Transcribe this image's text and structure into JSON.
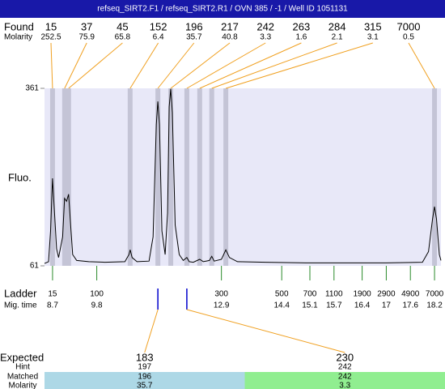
{
  "header": {
    "title": "refseq_SIRT2.F1 / refseq_SIRT2.R1 / OVN 385 / -1 / Well ID 1051131"
  },
  "chart_data": {
    "type": "line",
    "ylabel": "Fluo.",
    "ylim": [
      61,
      361
    ],
    "yticks": [
      61,
      361
    ],
    "xlim": [
      8.5,
      18.36
    ],
    "color": "#000000",
    "x": [
      8.5,
      8.6,
      8.65,
      8.7,
      8.75,
      8.8,
      8.85,
      8.95,
      9.0,
      9.05,
      9.1,
      9.15,
      9.2,
      9.3,
      9.6,
      10.0,
      10.5,
      10.6,
      10.63,
      10.68,
      10.8,
      11.1,
      11.2,
      11.28,
      11.32,
      11.36,
      11.42,
      11.5,
      11.56,
      11.6,
      11.64,
      11.68,
      11.75,
      11.85,
      11.95,
      12.04,
      12.1,
      12.2,
      12.36,
      12.45,
      12.6,
      12.66,
      12.72,
      12.9,
      13.01,
      13.1,
      13.3,
      14,
      15,
      16,
      17,
      17.9,
      18.05,
      18.15,
      18.2,
      18.25,
      18.32,
      18.36
    ],
    "values": [
      65,
      68,
      120,
      209,
      150,
      90,
      75,
      110,
      175,
      170,
      182,
      130,
      80,
      70,
      68,
      67,
      68,
      80,
      88,
      75,
      68,
      69,
      110,
      300,
      339,
      300,
      120,
      80,
      150,
      330,
      360,
      320,
      130,
      80,
      70,
      75,
      68,
      67,
      72,
      68,
      70,
      77,
      69,
      72,
      88,
      75,
      68,
      67,
      66,
      66,
      66,
      67,
      85,
      140,
      161,
      140,
      80,
      70
    ],
    "found": {
      "label": "Found",
      "molarity_label": "Molarity",
      "sizes": [
        15,
        37,
        45,
        152,
        196,
        217,
        242,
        263,
        284,
        315,
        7000
      ],
      "molarity": [
        252.5,
        75.9,
        65.8,
        6.4,
        35.7,
        40.8,
        3.3,
        1.6,
        2.1,
        3.1,
        0.5
      ],
      "times": [
        8.7,
        9.0,
        9.1,
        10.63,
        11.32,
        11.64,
        12.04,
        12.36,
        12.66,
        13.01,
        18.2
      ]
    },
    "ladder": {
      "label": "Ladder",
      "time_label": "Mig. time",
      "sizes": [
        15,
        100,
        300,
        500,
        700,
        1100,
        1900,
        2900,
        4900,
        7000
      ],
      "times": [
        8.7,
        9.8,
        12.9,
        14.4,
        15.1,
        15.7,
        16.4,
        17,
        17.6,
        18.2
      ]
    },
    "expected": {
      "label": "Expected",
      "hint_label": "Hint",
      "matched_label": "Matched",
      "molarity_label": "Molarity",
      "values": [
        183,
        230
      ],
      "hints": [
        197,
        242
      ],
      "matched": [
        196,
        242
      ],
      "molarity": [
        35.7,
        3.3
      ],
      "times": [
        11.32,
        12.04
      ]
    }
  }
}
